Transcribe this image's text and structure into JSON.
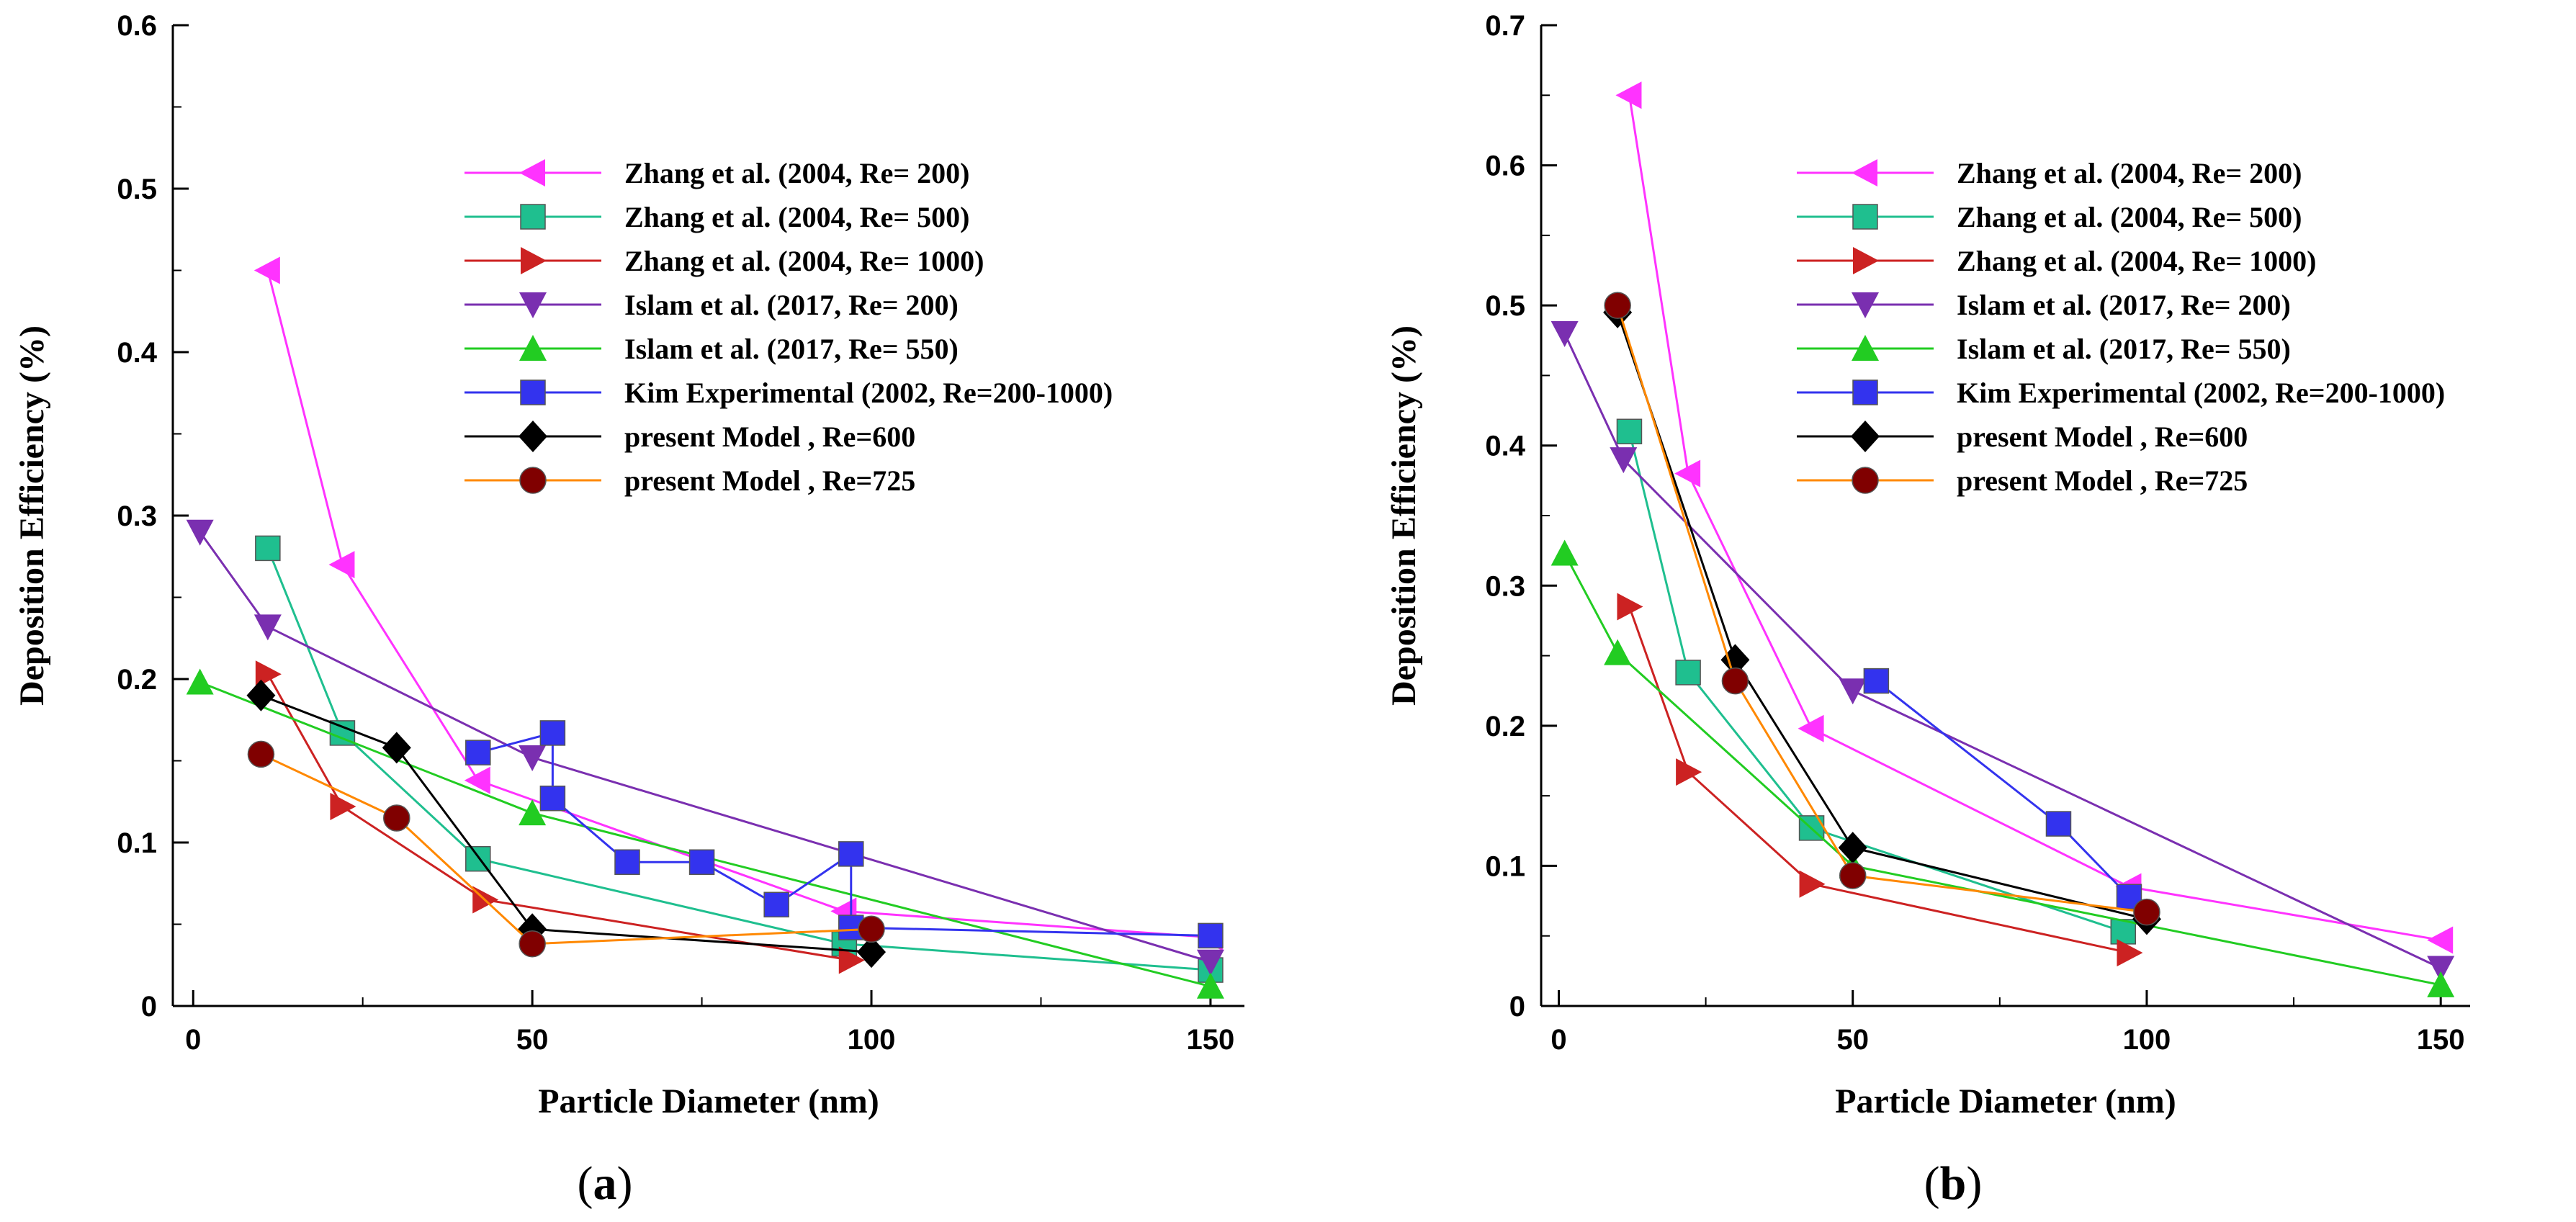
{
  "chart_data": [
    {
      "type": "line",
      "panel": "(a)",
      "panel_letter": "a",
      "xlabel": "Particle Diameter (nm)",
      "ylabel": "Deposition Efficiency (%)",
      "xlim": [
        -3,
        155
      ],
      "ylim": [
        0,
        0.6
      ],
      "xticks": [
        0,
        50,
        100,
        150
      ],
      "yticks": [
        0,
        0.1,
        0.2,
        0.3,
        0.4,
        0.5,
        0.6
      ],
      "ytick_labels": [
        "0",
        "0.1",
        "0.2",
        "0.3",
        "0.4",
        "0.5",
        "0.6"
      ],
      "grid": false,
      "legend_position": "top-right",
      "series": [
        {
          "name": "Zhang et al. (2004, Re= 200)",
          "color": "#ff33ff",
          "marker": "triangle-left",
          "x": [
            11,
            22,
            42,
            96,
            150
          ],
          "y": [
            0.45,
            0.27,
            0.138,
            0.058,
            0.042
          ]
        },
        {
          "name": "Zhang et al. (2004, Re= 500)",
          "color": "#1fbf8f",
          "marker": "square",
          "x": [
            11,
            22,
            42,
            96,
            150
          ],
          "y": [
            0.28,
            0.167,
            0.09,
            0.038,
            0.022
          ]
        },
        {
          "name": "Zhang et al. (2004, Re= 1000)",
          "color": "#cc2222",
          "marker": "triangle-right",
          "x": [
            11,
            22,
            43,
            97
          ],
          "y": [
            0.203,
            0.122,
            0.065,
            0.028
          ]
        },
        {
          "name": "Islam et al. (2017, Re= 200)",
          "color": "#7a2fb0",
          "marker": "triangle-down",
          "x": [
            1,
            11,
            50,
            150
          ],
          "y": [
            0.29,
            0.232,
            0.152,
            0.027
          ]
        },
        {
          "name": "Islam et al. (2017, Re= 550)",
          "color": "#22cc22",
          "marker": "triangle-up",
          "x": [
            1,
            50,
            150
          ],
          "y": [
            0.198,
            0.118,
            0.012
          ]
        },
        {
          "name": "Kim Experimental (2002, Re=200-1000)",
          "color": "#3333ee",
          "marker": "square",
          "x": [
            42,
            53,
            53,
            64,
            75,
            86,
            97,
            97,
            150
          ],
          "y": [
            0.155,
            0.167,
            0.127,
            0.088,
            0.088,
            0.062,
            0.093,
            0.048,
            0.043
          ]
        },
        {
          "name": "present Model , Re=600",
          "color": "#000000",
          "marker": "diamond",
          "x": [
            10,
            30,
            50,
            100
          ],
          "y": [
            0.19,
            0.158,
            0.047,
            0.033
          ]
        },
        {
          "name": "present Model , Re=725",
          "color": "#ff8800",
          "marker": "circle",
          "marker_fill": "#800000",
          "x": [
            10,
            30,
            50,
            100
          ],
          "y": [
            0.154,
            0.115,
            0.038,
            0.047
          ]
        }
      ]
    },
    {
      "type": "line",
      "panel": "(b)",
      "panel_letter": "b",
      "xlabel": "Particle Diameter (nm)",
      "ylabel": "Deposition Efficiency (%)",
      "xlim": [
        -3,
        155
      ],
      "ylim": [
        0,
        0.7
      ],
      "xticks": [
        0,
        50,
        100,
        150
      ],
      "yticks": [
        0,
        0.1,
        0.2,
        0.3,
        0.4,
        0.5,
        0.6,
        0.7
      ],
      "ytick_labels": [
        "0",
        "0.1",
        "0.2",
        "0.3",
        "0.4",
        "0.5",
        "0.6",
        "0.7"
      ],
      "grid": false,
      "legend_position": "top-right",
      "series": [
        {
          "name": "Zhang et al. (2004, Re= 200)",
          "color": "#ff33ff",
          "marker": "triangle-left",
          "x": [
            12,
            22,
            43,
            97,
            150
          ],
          "y": [
            0.65,
            0.38,
            0.198,
            0.085,
            0.047
          ]
        },
        {
          "name": "Zhang et al. (2004, Re= 500)",
          "color": "#1fbf8f",
          "marker": "square",
          "x": [
            12,
            22,
            43,
            96
          ],
          "y": [
            0.41,
            0.238,
            0.127,
            0.053
          ]
        },
        {
          "name": "Zhang et al. (2004, Re= 1000)",
          "color": "#cc2222",
          "marker": "triangle-right",
          "x": [
            12,
            22,
            43,
            97
          ],
          "y": [
            0.285,
            0.167,
            0.087,
            0.038
          ]
        },
        {
          "name": "Islam et al. (2017, Re= 200)",
          "color": "#7a2fb0",
          "marker": "triangle-down",
          "x": [
            1,
            11,
            50,
            150
          ],
          "y": [
            0.48,
            0.39,
            0.225,
            0.027
          ]
        },
        {
          "name": "Islam et al. (2017, Re= 550)",
          "color": "#22cc22",
          "marker": "triangle-up",
          "x": [
            1,
            10,
            50,
            150
          ],
          "y": [
            0.323,
            0.252,
            0.1,
            0.015
          ]
        },
        {
          "name": "Kim Experimental (2002, Re=200-1000)",
          "color": "#3333ee",
          "marker": "square",
          "x": [
            54,
            85,
            97
          ],
          "y": [
            0.232,
            0.13,
            0.078
          ]
        },
        {
          "name": "present Model , Re=600",
          "color": "#000000",
          "marker": "diamond",
          "x": [
            10,
            30,
            50,
            100
          ],
          "y": [
            0.495,
            0.247,
            0.113,
            0.062
          ]
        },
        {
          "name": "present Model , Re=725",
          "color": "#ff8800",
          "marker": "circle",
          "marker_fill": "#800000",
          "x": [
            10,
            30,
            50,
            100
          ],
          "y": [
            0.5,
            0.232,
            0.093,
            0.067
          ]
        }
      ]
    }
  ]
}
